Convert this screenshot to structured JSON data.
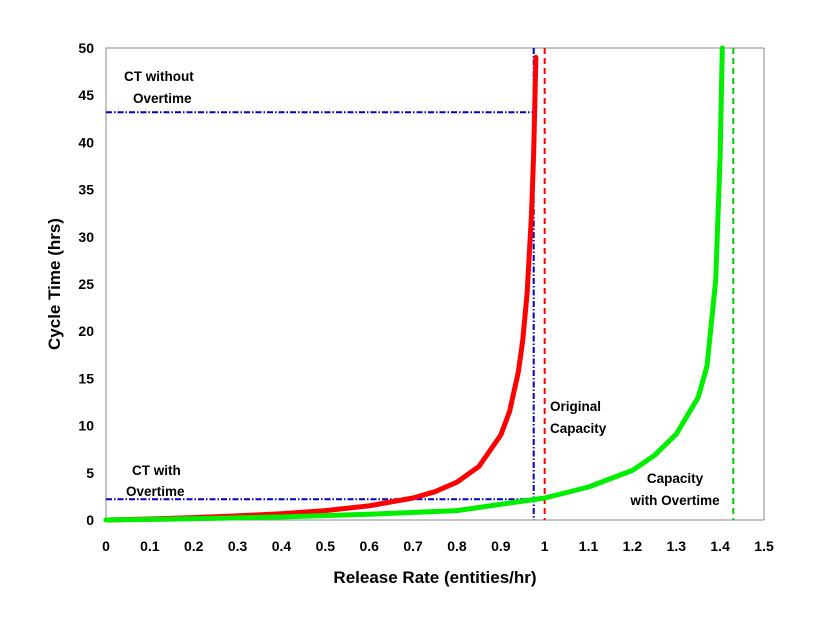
{
  "chart_data": {
    "type": "line",
    "title": "",
    "xlabel": "Release Rate (entities/hr)",
    "ylabel": "Cycle Time (hrs)",
    "xlim": [
      0,
      1.5
    ],
    "ylim": [
      0,
      50
    ],
    "x_ticks": [
      "0",
      "0.1",
      "0.2",
      "0.3",
      "0.4",
      "0.5",
      "0.6",
      "0.7",
      "0.8",
      "0.9",
      "1",
      "1.1",
      "1.2",
      "1.3",
      "1.4",
      "1.5"
    ],
    "y_ticks": [
      "0",
      "5",
      "10",
      "15",
      "20",
      "25",
      "30",
      "35",
      "40",
      "45",
      "50"
    ],
    "grid": false,
    "legend": "none",
    "series": [
      {
        "color": "#ff0000",
        "line": "solid",
        "x": [
          0,
          0.1,
          0.2,
          0.3,
          0.4,
          0.5,
          0.6,
          0.7,
          0.75,
          0.8,
          0.85,
          0.9,
          0.92,
          0.94,
          0.95,
          0.96,
          0.97,
          0.975,
          0.98
        ],
        "y": [
          0,
          0.11,
          0.25,
          0.43,
          0.67,
          1.0,
          1.5,
          2.33,
          3.0,
          4.0,
          5.67,
          9.0,
          11.5,
          15.67,
          19.0,
          24.0,
          32.33,
          39.0,
          49.0
        ]
      },
      {
        "color": "#00ee00",
        "line": "solid",
        "x": [
          0,
          0.2,
          0.4,
          0.6,
          0.8,
          1.0,
          1.1,
          1.2,
          1.25,
          1.3,
          1.35,
          1.37,
          1.39,
          1.4,
          1.405
        ],
        "y": [
          0,
          0.14,
          0.33,
          0.6,
          1.0,
          2.33,
          3.5,
          5.25,
          6.82,
          9.1,
          13.0,
          16.3,
          25.4,
          38.4,
          50.0
        ]
      }
    ],
    "reference_lines": [
      {
        "orientation": "vertical",
        "x": 1.0,
        "color": "#ff0000",
        "style": "dashed"
      },
      {
        "orientation": "vertical",
        "x": 1.43,
        "color": "#00cc00",
        "style": "dashed"
      },
      {
        "orientation": "vertical",
        "x": 0.975,
        "color": "#0000cc",
        "style": "dash-dot"
      },
      {
        "orientation": "horizontal",
        "y": 43.2,
        "x_from": 0,
        "x_to": 0.975,
        "color": "#0000cc",
        "style": "dash-dot"
      },
      {
        "orientation": "horizontal",
        "y": 2.2,
        "x_from": 0,
        "x_to": 0.975,
        "color": "#0000cc",
        "style": "dash-dot"
      }
    ],
    "annotations": [
      {
        "id": "ct-without",
        "lines": [
          "CT without",
          "Overtime"
        ]
      },
      {
        "id": "ct-with",
        "lines": [
          "CT with",
          "Overtime"
        ]
      },
      {
        "id": "original-capacity",
        "lines": [
          "Original",
          "Capacity"
        ]
      },
      {
        "id": "capacity-overtime",
        "lines": [
          "Capacity",
          "with Overtime"
        ]
      }
    ]
  }
}
